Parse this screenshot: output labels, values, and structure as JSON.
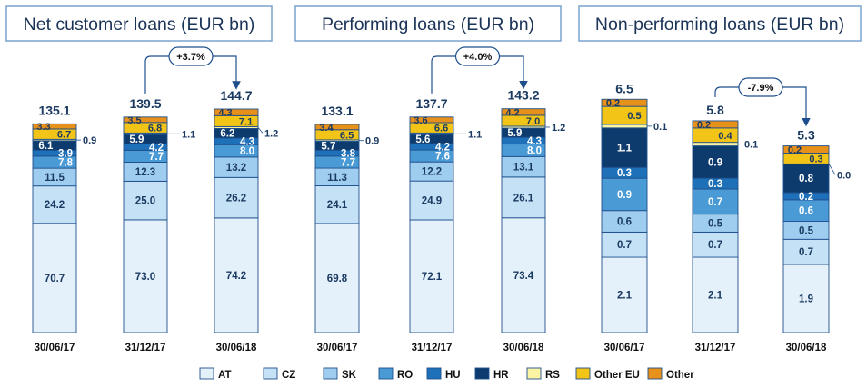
{
  "segments": [
    "AT",
    "CZ",
    "SK",
    "RO",
    "HU",
    "HR",
    "RS",
    "Other EU",
    "Other"
  ],
  "colors": {
    "AT": "#e4f1fb",
    "CZ": "#c4e1f6",
    "SK": "#9fcdef",
    "RO": "#4a9ad6",
    "HU": "#1e70b8",
    "HR": "#0d3b6e",
    "RS": "#fbf5a3",
    "Other EU": "#f2c417",
    "Other": "#e7901a",
    "border": "#1e4f8c",
    "text": "#1b3a62"
  },
  "legend": [
    {
      "key": "AT",
      "label": "AT"
    },
    {
      "key": "CZ",
      "label": "CZ"
    },
    {
      "key": "SK",
      "label": "SK"
    },
    {
      "key": "RO",
      "label": "RO"
    },
    {
      "key": "HU",
      "label": "HU"
    },
    {
      "key": "HR",
      "label": "HR"
    },
    {
      "key": "RS",
      "label": "RS"
    },
    {
      "key": "Other EU",
      "label": "Other EU"
    },
    {
      "key": "Other",
      "label": "Other"
    }
  ],
  "chart_data": [
    {
      "type": "bar",
      "stacked": true,
      "title": "Net customer loans (EUR bn)",
      "categories": [
        "30/06/17",
        "31/12/17",
        "30/06/18"
      ],
      "totals": [
        "135.1",
        "139.5",
        "144.7"
      ],
      "series": [
        {
          "name": "AT",
          "values": [
            70.7,
            73.0,
            74.2
          ],
          "labels": [
            "70.7",
            "73.0",
            "74.2"
          ]
        },
        {
          "name": "CZ",
          "values": [
            24.2,
            25.0,
            26.2
          ],
          "labels": [
            "24.2",
            "25.0",
            "26.2"
          ]
        },
        {
          "name": "SK",
          "values": [
            11.5,
            12.3,
            13.2
          ],
          "labels": [
            "11.5",
            "12.3",
            "13.2"
          ]
        },
        {
          "name": "RO",
          "values": [
            7.8,
            7.7,
            8.0
          ],
          "labels": [
            "7.8",
            "7.7",
            "8.0"
          ]
        },
        {
          "name": "HU",
          "values": [
            3.9,
            4.2,
            4.3
          ],
          "labels": [
            "3.9",
            "4.2",
            "4.3"
          ]
        },
        {
          "name": "HR",
          "values": [
            6.1,
            5.9,
            6.2
          ],
          "labels": [
            "6.1",
            "5.9",
            "6.2"
          ]
        },
        {
          "name": "RS",
          "values": [
            0.9,
            1.1,
            1.2
          ],
          "labels": [
            "0.9",
            "1.1",
            "1.2"
          ]
        },
        {
          "name": "Other EU",
          "values": [
            6.7,
            6.8,
            7.1
          ],
          "labels": [
            "6.7",
            "6.8",
            "7.1"
          ]
        },
        {
          "name": "Other",
          "values": [
            3.3,
            3.5,
            4.3
          ],
          "labels": [
            "3.3",
            "3.5",
            "4.3"
          ]
        }
      ],
      "change": {
        "label": "+3.7%",
        "from": 1,
        "to": 2
      },
      "ylim": [
        0,
        150
      ]
    },
    {
      "type": "bar",
      "stacked": true,
      "title": "Performing loans (EUR bn)",
      "categories": [
        "30/06/17",
        "31/12/17",
        "30/06/18"
      ],
      "totals": [
        "133.1",
        "137.7",
        "143.2"
      ],
      "series": [
        {
          "name": "AT",
          "values": [
            69.8,
            72.1,
            73.4
          ],
          "labels": [
            "69.8",
            "72.1",
            "73.4"
          ]
        },
        {
          "name": "CZ",
          "values": [
            24.1,
            24.9,
            26.1
          ],
          "labels": [
            "24.1",
            "24.9",
            "26.1"
          ]
        },
        {
          "name": "SK",
          "values": [
            11.3,
            12.2,
            13.1
          ],
          "labels": [
            "11.3",
            "12.2",
            "13.1"
          ]
        },
        {
          "name": "RO",
          "values": [
            7.7,
            7.6,
            8.0
          ],
          "labels": [
            "7.7",
            "7.6",
            "8.0"
          ]
        },
        {
          "name": "HU",
          "values": [
            3.8,
            4.2,
            4.3
          ],
          "labels": [
            "3.8",
            "4.2",
            "4.3"
          ]
        },
        {
          "name": "HR",
          "values": [
            5.7,
            5.6,
            5.9
          ],
          "labels": [
            "5.7",
            "5.6",
            "5.9"
          ]
        },
        {
          "name": "RS",
          "values": [
            0.9,
            1.1,
            1.2
          ],
          "labels": [
            "0.9",
            "1.1",
            "1.2"
          ]
        },
        {
          "name": "Other EU",
          "values": [
            6.5,
            6.6,
            7.0
          ],
          "labels": [
            "6.5",
            "6.6",
            "7.0"
          ]
        },
        {
          "name": "Other",
          "values": [
            3.4,
            3.6,
            4.2
          ],
          "labels": [
            "3.4",
            "3.6",
            "4.2"
          ]
        }
      ],
      "change": {
        "label": "+4.0%",
        "from": 1,
        "to": 2
      },
      "ylim": [
        0,
        150
      ]
    },
    {
      "type": "bar",
      "stacked": true,
      "title": "Non-performing loans (EUR bn)",
      "categories": [
        "30/06/17",
        "31/12/17",
        "30/06/18"
      ],
      "totals": [
        "6.5",
        "5.8",
        "5.3"
      ],
      "series": [
        {
          "name": "AT",
          "values": [
            2.1,
            2.1,
            1.9
          ],
          "labels": [
            "2.1",
            "2.1",
            "1.9"
          ]
        },
        {
          "name": "CZ",
          "values": [
            0.7,
            0.7,
            0.7
          ],
          "labels": [
            "0.7",
            "0.7",
            "0.7"
          ]
        },
        {
          "name": "SK",
          "values": [
            0.6,
            0.5,
            0.5
          ],
          "labels": [
            "0.6",
            "0.5",
            "0.5"
          ]
        },
        {
          "name": "RO",
          "values": [
            0.9,
            0.7,
            0.6
          ],
          "labels": [
            "0.9",
            "0.7",
            "0.6"
          ]
        },
        {
          "name": "HU",
          "values": [
            0.3,
            0.3,
            0.2
          ],
          "labels": [
            "0.3",
            "0.3",
            "0.2"
          ]
        },
        {
          "name": "HR",
          "values": [
            1.1,
            0.9,
            0.8
          ],
          "labels": [
            "1.1",
            "0.9",
            "0.8"
          ]
        },
        {
          "name": "RS",
          "values": [
            0.1,
            0.1,
            0.0
          ],
          "labels": [
            "0.1",
            "0.1",
            "0.0"
          ]
        },
        {
          "name": "Other EU",
          "values": [
            0.5,
            0.4,
            0.3
          ],
          "labels": [
            "0.5",
            "0.4",
            "0.3"
          ]
        },
        {
          "name": "Other",
          "values": [
            0.2,
            0.2,
            0.2
          ],
          "labels": [
            "0.2",
            "0.2",
            "0.2"
          ]
        }
      ],
      "change": {
        "label": "-7.9%",
        "from": 1,
        "to": 2
      },
      "ylim": [
        0,
        7
      ]
    }
  ]
}
